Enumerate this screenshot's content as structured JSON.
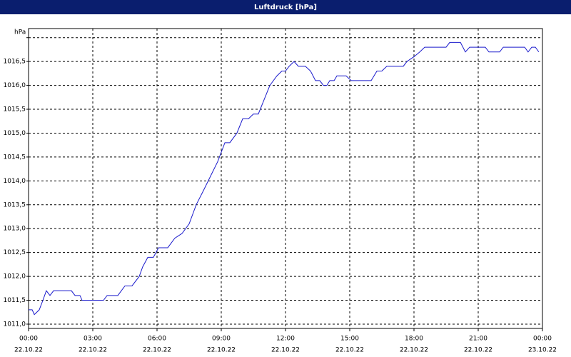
{
  "chart_data": {
    "type": "line",
    "title": "Luftdruck [hPa]",
    "y_label": "hPa",
    "x": [
      0,
      0.17,
      0.27,
      0.5,
      0.67,
      0.83,
      1.0,
      1.17,
      2.0,
      2.17,
      2.4,
      2.5,
      3.5,
      3.67,
      4.17,
      4.5,
      4.83,
      5.17,
      5.33,
      5.57,
      5.83,
      6.07,
      6.5,
      6.83,
      7.17,
      7.5,
      7.83,
      8.17,
      8.5,
      8.83,
      9.17,
      9.4,
      9.73,
      10.0,
      10.27,
      10.5,
      10.73,
      11.0,
      11.27,
      11.6,
      11.83,
      12.0,
      12.17,
      12.4,
      12.6,
      12.93,
      13.17,
      13.4,
      13.6,
      13.77,
      13.93,
      14.07,
      14.27,
      14.4,
      14.83,
      15.07,
      16.0,
      16.27,
      16.5,
      16.73,
      17.5,
      17.67,
      18.0,
      18.27,
      18.5,
      19.5,
      19.67,
      20.17,
      20.4,
      20.6,
      21.33,
      21.5,
      22.0,
      22.17,
      23.17,
      23.33,
      23.5,
      23.67,
      23.83
    ],
    "series": [
      {
        "name": "Luftdruck",
        "color": "#1a1acc",
        "values": [
          1011.3,
          1011.3,
          1011.2,
          1011.3,
          1011.5,
          1011.7,
          1011.6,
          1011.7,
          1011.7,
          1011.6,
          1011.6,
          1011.5,
          1011.5,
          1011.6,
          1011.6,
          1011.8,
          1011.8,
          1012.0,
          1012.2,
          1012.4,
          1012.4,
          1012.6,
          1012.6,
          1012.8,
          1012.9,
          1013.1,
          1013.5,
          1013.8,
          1014.1,
          1014.4,
          1014.8,
          1014.8,
          1015.0,
          1015.3,
          1015.3,
          1015.4,
          1015.4,
          1015.7,
          1016.0,
          1016.2,
          1016.3,
          1016.3,
          1016.4,
          1016.5,
          1016.4,
          1016.4,
          1016.3,
          1016.1,
          1016.1,
          1016.0,
          1016.0,
          1016.1,
          1016.1,
          1016.2,
          1016.2,
          1016.1,
          1016.1,
          1016.3,
          1016.3,
          1016.4,
          1016.4,
          1016.5,
          1016.6,
          1016.7,
          1016.8,
          1016.8,
          1016.9,
          1016.9,
          1016.7,
          1016.8,
          1016.8,
          1016.7,
          1016.7,
          1016.8,
          1016.8,
          1016.7,
          1016.8,
          1016.8,
          1016.7
        ]
      }
    ],
    "xlim": [
      0,
      24
    ],
    "ylim": [
      1010.91,
      1017.19
    ],
    "xticks": [
      {
        "value": 0,
        "label": "00:00",
        "date": "22.10.22"
      },
      {
        "value": 3,
        "label": "03:00",
        "date": "22.10.22"
      },
      {
        "value": 6,
        "label": "06:00",
        "date": "22.10.22"
      },
      {
        "value": 9,
        "label": "09:00",
        "date": "22.10.22"
      },
      {
        "value": 12,
        "label": "12:00",
        "date": "22.10.22"
      },
      {
        "value": 15,
        "label": "15:00",
        "date": "22.10.22"
      },
      {
        "value": 18,
        "label": "18:00",
        "date": "22.10.22"
      },
      {
        "value": 21,
        "label": "21:00",
        "date": "22.10.22"
      },
      {
        "value": 24,
        "label": "00:00",
        "date": "23.10.22"
      }
    ],
    "yticks": [
      {
        "value": 1011.0,
        "label": "1011,0"
      },
      {
        "value": 1011.5,
        "label": "1011,5"
      },
      {
        "value": 1012.0,
        "label": "1012,0"
      },
      {
        "value": 1012.5,
        "label": "1012,5"
      },
      {
        "value": 1013.0,
        "label": "1013,0"
      },
      {
        "value": 1013.5,
        "label": "1013,5"
      },
      {
        "value": 1014.0,
        "label": "1014,0"
      },
      {
        "value": 1014.5,
        "label": "1014,5"
      },
      {
        "value": 1015.0,
        "label": "1015,0"
      },
      {
        "value": 1015.5,
        "label": "1015,5"
      },
      {
        "value": 1016.0,
        "label": "1016,0"
      },
      {
        "value": 1016.5,
        "label": "1016,5"
      },
      {
        "value": 1017.0,
        "label": null
      }
    ],
    "grid": true
  }
}
